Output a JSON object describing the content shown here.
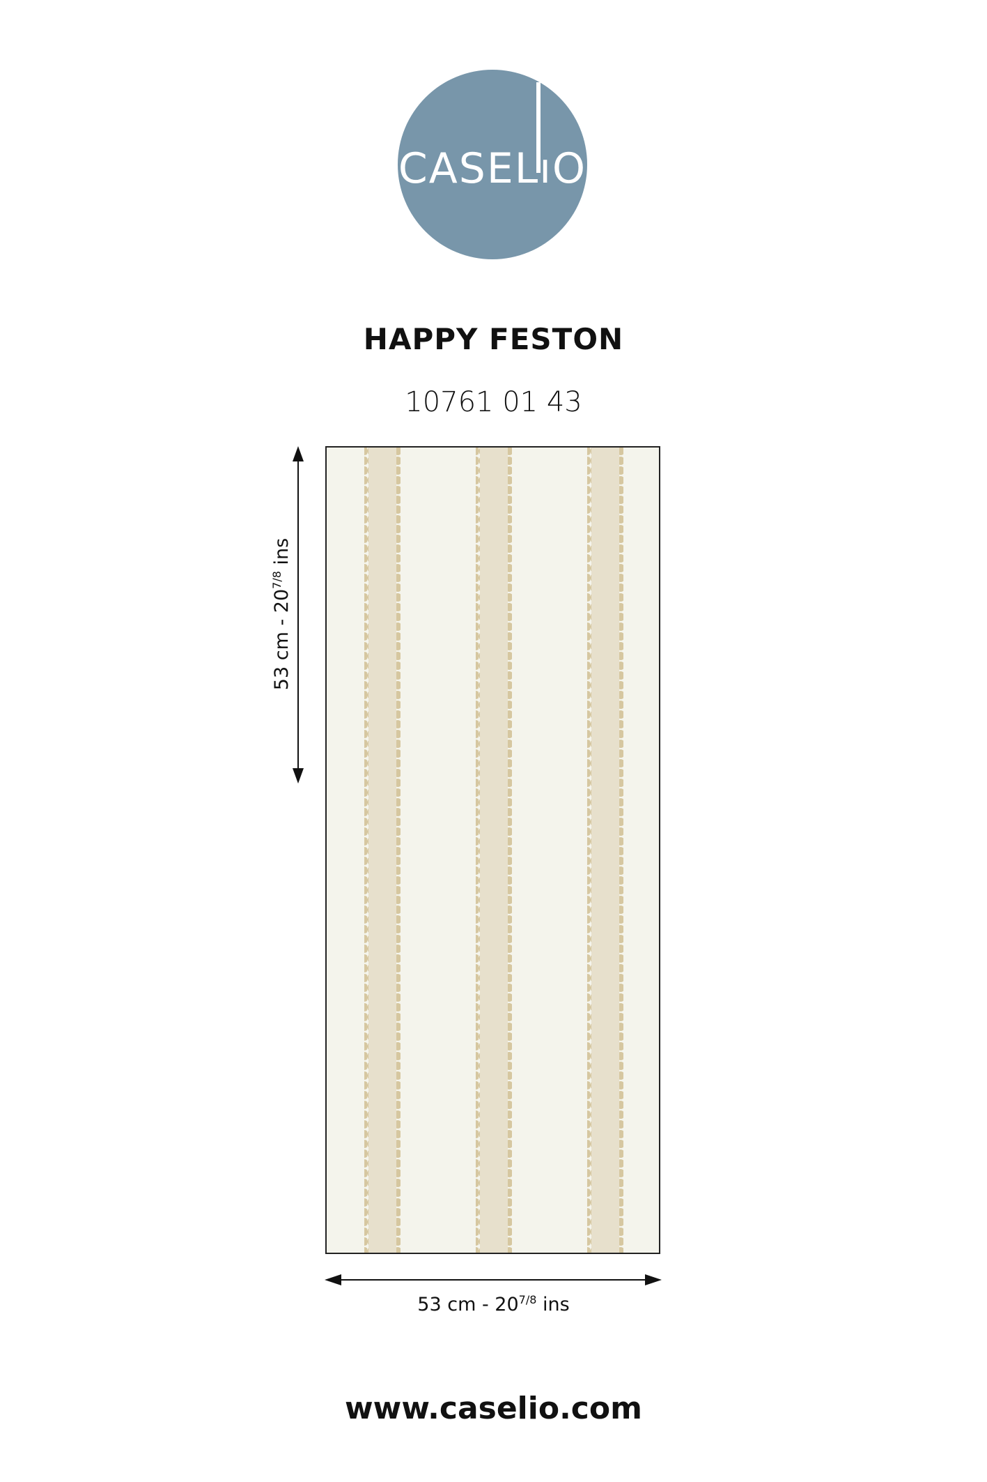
{
  "logo": {
    "text": "CASELIO",
    "color": "#7896aa"
  },
  "product": {
    "name": "HAPPY FESTON",
    "code": "10761 01 43"
  },
  "dimensions": {
    "height": {
      "cm": "53 cm - 20",
      "frac": "7/8",
      "unit": "ins"
    },
    "width": {
      "cm": "53 cm - 20",
      "frac": "7/8",
      "unit": "ins"
    }
  },
  "pattern": {
    "background": "#f4f4ec",
    "stripe": "#e7e0cc",
    "scallop": "#d6c7a0",
    "stripe_count": 3
  },
  "footer": {
    "url": "www.caselio.com"
  }
}
